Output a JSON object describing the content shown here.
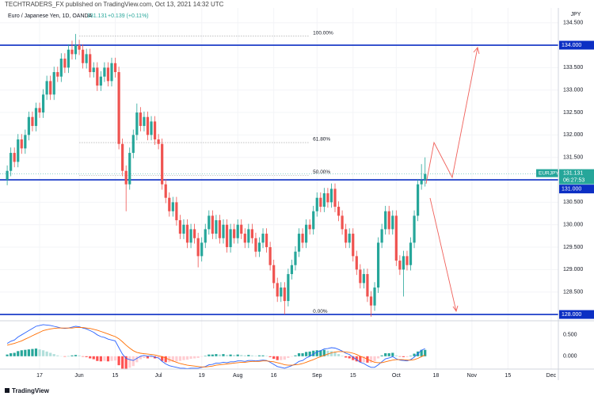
{
  "header": {
    "publisher": "TECHTRADERS_FX published on TradingView.com, Oct 13, 2021 14:32 UTC"
  },
  "footer": {
    "logo": "TradingView"
  },
  "chart_data": {
    "type": "candlestick",
    "title": "Euro / Japanese Yen, 1D, OANDA",
    "last": 131.131,
    "change": "+0.139 (+0.11%)",
    "symbol": "EURJPY",
    "countdown": "06:27:53",
    "currency": "JPY",
    "up_color": "#26a69a",
    "down_color": "#ef5350",
    "grid": true,
    "xlim": [
      -2,
      153
    ],
    "xticks": [
      {
        "value": 9,
        "label": "17"
      },
      {
        "value": 20,
        "label": "Jun"
      },
      {
        "value": 30,
        "label": "15"
      },
      {
        "value": 42,
        "label": "Jul"
      },
      {
        "value": 54,
        "label": "19"
      },
      {
        "value": 64,
        "label": "Aug"
      },
      {
        "value": 74,
        "label": "16"
      },
      {
        "value": 86,
        "label": "Sep"
      },
      {
        "value": 96,
        "label": "15"
      },
      {
        "value": 108,
        "label": "Oct"
      },
      {
        "value": 119,
        "label": "18"
      },
      {
        "value": 129,
        "label": "Nov"
      },
      {
        "value": 139,
        "label": "15"
      },
      {
        "value": 151,
        "label": "Dec"
      }
    ],
    "ylim": [
      127.86,
      134.83
    ],
    "yticks": [
      {
        "value": 128.5,
        "label": "128.500"
      },
      {
        "value": 129,
        "label": "129.000"
      },
      {
        "value": 129.5,
        "label": "129.500"
      },
      {
        "value": 130,
        "label": "130.000"
      },
      {
        "value": 130.5,
        "label": "130.500"
      },
      {
        "value": 131,
        "label": "131.000"
      },
      {
        "value": 131.5,
        "label": "131.500"
      },
      {
        "value": 132,
        "label": "132.000"
      },
      {
        "value": 132.5,
        "label": "132.500"
      },
      {
        "value": 133,
        "label": "133.000"
      },
      {
        "value": 133.5,
        "label": "133.500"
      },
      {
        "value": 134,
        "label": "134.000"
      },
      {
        "value": 134.5,
        "label": "134.500"
      }
    ],
    "ohlc": [
      [
        131.0,
        131.32,
        130.88,
        131.2
      ],
      [
        131.2,
        131.72,
        131.08,
        131.6
      ],
      [
        131.6,
        131.72,
        131.28,
        131.4
      ],
      [
        131.4,
        132.02,
        131.28,
        131.9
      ],
      [
        131.9,
        132.02,
        131.58,
        131.7
      ],
      [
        131.7,
        132.12,
        131.58,
        132.0
      ],
      [
        132.0,
        132.52,
        131.88,
        132.4
      ],
      [
        132.4,
        132.52,
        132.08,
        132.2
      ],
      [
        132.2,
        132.72,
        132.08,
        132.6
      ],
      [
        132.6,
        132.72,
        132.38,
        132.5
      ],
      [
        132.5,
        133.02,
        132.38,
        132.9
      ],
      [
        132.9,
        133.32,
        132.78,
        133.2
      ],
      [
        133.2,
        133.32,
        132.78,
        132.9
      ],
      [
        132.9,
        133.52,
        132.78,
        133.4
      ],
      [
        133.4,
        133.52,
        133.18,
        133.3
      ],
      [
        133.3,
        133.82,
        133.18,
        133.7
      ],
      [
        133.7,
        133.82,
        133.38,
        133.5
      ],
      [
        133.5,
        134.02,
        133.38,
        133.9
      ],
      [
        133.9,
        134.1,
        133.68,
        133.8
      ],
      [
        133.8,
        134.25,
        133.68,
        134.0
      ],
      [
        134.0,
        134.12,
        133.78,
        133.9
      ],
      [
        133.9,
        134.02,
        133.48,
        133.6
      ],
      [
        133.6,
        133.92,
        133.48,
        133.8
      ],
      [
        133.8,
        133.92,
        133.28,
        133.4
      ],
      [
        133.4,
        133.62,
        133.28,
        133.5
      ],
      [
        133.5,
        133.62,
        132.98,
        133.1
      ],
      [
        133.1,
        133.42,
        132.98,
        133.3
      ],
      [
        133.3,
        133.62,
        133.18,
        133.5
      ],
      [
        133.5,
        133.62,
        133.08,
        133.2
      ],
      [
        133.2,
        133.72,
        133.08,
        133.6
      ],
      [
        133.6,
        133.72,
        133.28,
        133.4
      ],
      [
        133.4,
        133.52,
        131.68,
        131.8
      ],
      [
        131.8,
        131.92,
        131.08,
        131.2
      ],
      [
        131.2,
        131.32,
        130.3,
        130.9
      ],
      [
        130.9,
        131.72,
        130.78,
        131.6
      ],
      [
        131.6,
        132.12,
        131.48,
        132.0
      ],
      [
        132.0,
        132.7,
        131.88,
        132.5
      ],
      [
        132.5,
        132.62,
        132.08,
        132.2
      ],
      [
        132.2,
        132.52,
        132.08,
        132.4
      ],
      [
        132.4,
        132.52,
        131.88,
        132.0
      ],
      [
        132.0,
        132.42,
        131.88,
        132.3
      ],
      [
        132.3,
        132.42,
        131.78,
        131.9
      ],
      [
        131.9,
        132.02,
        131.68,
        131.8
      ],
      [
        131.8,
        131.92,
        130.78,
        130.9
      ],
      [
        130.9,
        131.02,
        130.48,
        130.6
      ],
      [
        130.6,
        130.72,
        130.18,
        130.3
      ],
      [
        130.3,
        130.62,
        130.18,
        130.5
      ],
      [
        130.5,
        130.62,
        129.98,
        130.1
      ],
      [
        130.1,
        130.22,
        129.68,
        129.8
      ],
      [
        129.8,
        130.12,
        129.68,
        130.0
      ],
      [
        130.0,
        130.12,
        129.48,
        129.6
      ],
      [
        129.6,
        130.02,
        129.48,
        129.9
      ],
      [
        129.9,
        130.02,
        129.58,
        129.7
      ],
      [
        129.7,
        129.82,
        129.05,
        129.3
      ],
      [
        129.3,
        129.72,
        129.18,
        129.6
      ],
      [
        129.6,
        130.02,
        129.48,
        129.9
      ],
      [
        129.9,
        130.32,
        129.78,
        130.2
      ],
      [
        130.2,
        130.32,
        129.68,
        129.8
      ],
      [
        129.8,
        130.22,
        129.68,
        130.1
      ],
      [
        130.1,
        130.22,
        129.58,
        129.7
      ],
      [
        129.7,
        130.12,
        129.58,
        130.0
      ],
      [
        130.0,
        130.12,
        129.38,
        129.5
      ],
      [
        129.5,
        130.02,
        129.38,
        129.9
      ],
      [
        129.9,
        130.02,
        129.58,
        129.7
      ],
      [
        129.7,
        130.12,
        129.58,
        130.0
      ],
      [
        130.0,
        130.12,
        129.68,
        129.8
      ],
      [
        129.8,
        129.92,
        129.48,
        129.6
      ],
      [
        129.6,
        130.02,
        129.48,
        129.9
      ],
      [
        129.9,
        130.02,
        129.58,
        129.7
      ],
      [
        129.7,
        129.82,
        129.28,
        129.4
      ],
      [
        129.4,
        129.72,
        129.28,
        129.6
      ],
      [
        129.6,
        129.92,
        129.48,
        129.8
      ],
      [
        129.8,
        129.92,
        129.38,
        129.5
      ],
      [
        129.5,
        129.62,
        128.98,
        129.1
      ],
      [
        129.1,
        129.22,
        128.58,
        128.7
      ],
      [
        128.7,
        128.82,
        128.28,
        128.4
      ],
      [
        128.4,
        128.72,
        128.28,
        128.6
      ],
      [
        128.6,
        128.72,
        128.0,
        128.3
      ],
      [
        128.3,
        129.02,
        128.18,
        128.9
      ],
      [
        128.9,
        129.22,
        128.78,
        129.1
      ],
      [
        129.1,
        129.52,
        128.98,
        129.4
      ],
      [
        129.4,
        129.92,
        129.28,
        129.8
      ],
      [
        129.8,
        129.92,
        129.48,
        129.6
      ],
      [
        129.6,
        130.12,
        129.48,
        130.0
      ],
      [
        130.0,
        130.12,
        129.78,
        129.9
      ],
      [
        129.9,
        130.42,
        129.78,
        130.3
      ],
      [
        130.3,
        130.72,
        130.18,
        130.6
      ],
      [
        130.6,
        130.72,
        130.28,
        130.4
      ],
      [
        130.4,
        130.82,
        130.28,
        130.7
      ],
      [
        130.7,
        130.82,
        130.38,
        130.5
      ],
      [
        130.5,
        130.92,
        130.38,
        130.8
      ],
      [
        130.8,
        130.92,
        130.28,
        130.4
      ],
      [
        130.4,
        130.52,
        130.08,
        130.2
      ],
      [
        130.2,
        130.32,
        129.78,
        129.9
      ],
      [
        129.9,
        130.02,
        129.48,
        129.6
      ],
      [
        129.6,
        129.92,
        129.48,
        129.8
      ],
      [
        129.8,
        129.92,
        129.18,
        129.3
      ],
      [
        129.3,
        129.42,
        128.88,
        129.0
      ],
      [
        129.0,
        129.12,
        128.58,
        128.7
      ],
      [
        128.7,
        129.02,
        128.58,
        128.9
      ],
      [
        128.9,
        129.02,
        128.28,
        128.4
      ],
      [
        128.4,
        128.52,
        127.95,
        128.2
      ],
      [
        128.2,
        128.72,
        128.08,
        128.6
      ],
      [
        128.6,
        129.72,
        128.48,
        129.6
      ],
      [
        129.6,
        130.02,
        129.48,
        129.9
      ],
      [
        129.9,
        130.42,
        129.78,
        130.3
      ],
      [
        130.3,
        130.42,
        129.78,
        129.9
      ],
      [
        129.9,
        130.32,
        129.78,
        130.2
      ],
      [
        130.2,
        130.32,
        129.08,
        129.2
      ],
      [
        129.2,
        129.32,
        128.88,
        129.0
      ],
      [
        129.0,
        129.42,
        128.4,
        129.3
      ],
      [
        129.3,
        129.42,
        128.98,
        129.1
      ],
      [
        129.1,
        129.72,
        128.98,
        129.6
      ],
      [
        129.6,
        130.32,
        129.48,
        130.2
      ],
      [
        130.2,
        131.02,
        130.08,
        130.9
      ],
      [
        130.9,
        131.35,
        130.78,
        130.992
      ],
      [
        131.0,
        131.5,
        130.85,
        131.131
      ]
    ],
    "hlines": {
      "color": "#0c2fc4",
      "values": [
        {
          "value": 134,
          "label": "134.000"
        },
        {
          "value": 131,
          "label": "131.000"
        },
        {
          "value": 128,
          "label": "128.000"
        }
      ]
    },
    "fib": {
      "levels": [
        {
          "value": 100,
          "label": "100.00%"
        },
        {
          "value": 61.8,
          "label": "61.80%"
        },
        {
          "value": 50,
          "label": "50.00%"
        },
        {
          "value": 0,
          "label": "0.00%"
        }
      ],
      "prices": [
        134.2,
        131.83,
        131.1,
        128.0
      ]
    },
    "macd": {
      "ylim": [
        -0.3,
        0.83
      ],
      "yticks": [
        {
          "value": 0,
          "label": "0.000"
        },
        {
          "value": 0.5,
          "label": "0.500"
        }
      ],
      "hist_colors": [
        "#26a69a",
        "#b2dfdb",
        "#ff5252",
        "#ffcdd2"
      ],
      "histogram": [
        0.04,
        0.07,
        0.08,
        0.12,
        0.14,
        0.15,
        0.16,
        0.17,
        0.18,
        0.16,
        0.14,
        0.11,
        0.08,
        0.05,
        0.02,
        0,
        -0.01,
        0,
        0.02,
        0.03,
        0.02,
        -0.01,
        -0.02,
        -0.05,
        -0.07,
        -0.11,
        -0.12,
        -0.11,
        -0.12,
        -0.11,
        -0.1,
        -0.21,
        -0.29,
        -0.31,
        -0.27,
        -0.23,
        -0.14,
        -0.07,
        -0.04,
        -0.05,
        -0.03,
        -0.05,
        -0.05,
        -0.11,
        -0.14,
        -0.14,
        -0.13,
        -0.12,
        -0.11,
        -0.09,
        -0.08,
        -0.06,
        -0.05,
        -0.04,
        -0.01,
        0.01,
        0.04,
        0.04,
        0.05,
        0.04,
        0.05,
        0.03,
        0.04,
        0.03,
        0.04,
        0.03,
        0.02,
        0.03,
        0.02,
        0.01,
        0.02,
        0.02,
        0.01,
        -0.02,
        -0.06,
        -0.09,
        -0.09,
        -0.08,
        -0.04,
        -0.01,
        0.02,
        0.07,
        0.07,
        0.1,
        0.11,
        0.13,
        0.14,
        0.14,
        0.15,
        0.13,
        0.12,
        0.09,
        0.05,
        0.01,
        -0.03,
        -0.05,
        -0.09,
        -0.12,
        -0.14,
        -0.14,
        -0.15,
        -0.15,
        -0.12,
        -0.05,
        0.02,
        0.07,
        0.07,
        0.08,
        0.02,
        -0.01,
        -0.02,
        -0.02,
        0.01,
        0.06,
        0.11,
        0.15,
        0.15
      ],
      "series": [
        {
          "color": "#2962ff",
          "values": [
            0.3,
            0.35,
            0.38,
            0.45,
            0.5,
            0.55,
            0.6,
            0.65,
            0.7,
            0.72,
            0.74,
            0.73,
            0.72,
            0.7,
            0.68,
            0.66,
            0.65,
            0.66,
            0.68,
            0.7,
            0.69,
            0.66,
            0.64,
            0.6,
            0.56,
            0.5,
            0.46,
            0.44,
            0.4,
            0.38,
            0.36,
            0.2,
            0.05,
            -0.05,
            -0.08,
            -0.1,
            -0.05,
            0,
            0.02,
            0,
            0.01,
            -0.02,
            -0.04,
            -0.12,
            -0.18,
            -0.22,
            -0.24,
            -0.26,
            -0.28,
            -0.28,
            -0.29,
            -0.28,
            -0.28,
            -0.28,
            -0.26,
            -0.24,
            -0.2,
            -0.19,
            -0.16,
            -0.16,
            -0.14,
            -0.15,
            -0.13,
            -0.13,
            -0.11,
            -0.11,
            -0.12,
            -0.1,
            -0.1,
            -0.11,
            -0.1,
            -0.09,
            -0.1,
            -0.14,
            -0.19,
            -0.24,
            -0.26,
            -0.28,
            -0.25,
            -0.22,
            -0.18,
            -0.12,
            -0.1,
            -0.04,
            0,
            0.05,
            0.1,
            0.13,
            0.17,
            0.18,
            0.2,
            0.19,
            0.16,
            0.12,
            0.07,
            0.04,
            -0.02,
            -0.08,
            -0.14,
            -0.17,
            -0.22,
            -0.26,
            -0.26,
            -0.2,
            -0.13,
            -0.06,
            -0.04,
            -0.01,
            -0.06,
            -0.09,
            -0.1,
            -0.11,
            -0.08,
            -0.02,
            0.06,
            0.14,
            0.18
          ]
        },
        {
          "color": "#ff6d00",
          "values": [
            0.26,
            0.28,
            0.3,
            0.33,
            0.36,
            0.4,
            0.44,
            0.48,
            0.52,
            0.56,
            0.6,
            0.62,
            0.64,
            0.65,
            0.66,
            0.66,
            0.66,
            0.66,
            0.66,
            0.67,
            0.67,
            0.67,
            0.66,
            0.65,
            0.63,
            0.61,
            0.58,
            0.55,
            0.52,
            0.49,
            0.46,
            0.41,
            0.34,
            0.26,
            0.19,
            0.13,
            0.09,
            0.07,
            0.06,
            0.05,
            0.04,
            0.03,
            0.01,
            -0.01,
            -0.04,
            -0.08,
            -0.11,
            -0.14,
            -0.17,
            -0.19,
            -0.21,
            -0.22,
            -0.23,
            -0.24,
            -0.25,
            -0.25,
            -0.24,
            -0.23,
            -0.21,
            -0.2,
            -0.19,
            -0.18,
            -0.17,
            -0.16,
            -0.15,
            -0.14,
            -0.14,
            -0.13,
            -0.12,
            -0.12,
            -0.12,
            -0.11,
            -0.11,
            -0.12,
            -0.13,
            -0.15,
            -0.17,
            -0.2,
            -0.21,
            -0.21,
            -0.2,
            -0.19,
            -0.17,
            -0.14,
            -0.11,
            -0.08,
            -0.04,
            -0.01,
            0.02,
            0.05,
            0.08,
            0.1,
            0.11,
            0.11,
            0.1,
            0.09,
            0.07,
            0.04,
            0,
            -0.03,
            -0.07,
            -0.11,
            -0.14,
            -0.15,
            -0.15,
            -0.13,
            -0.11,
            -0.09,
            -0.08,
            -0.08,
            -0.08,
            -0.09,
            -0.09,
            -0.08,
            -0.05,
            -0.01,
            0.03
          ]
        }
      ]
    }
  }
}
